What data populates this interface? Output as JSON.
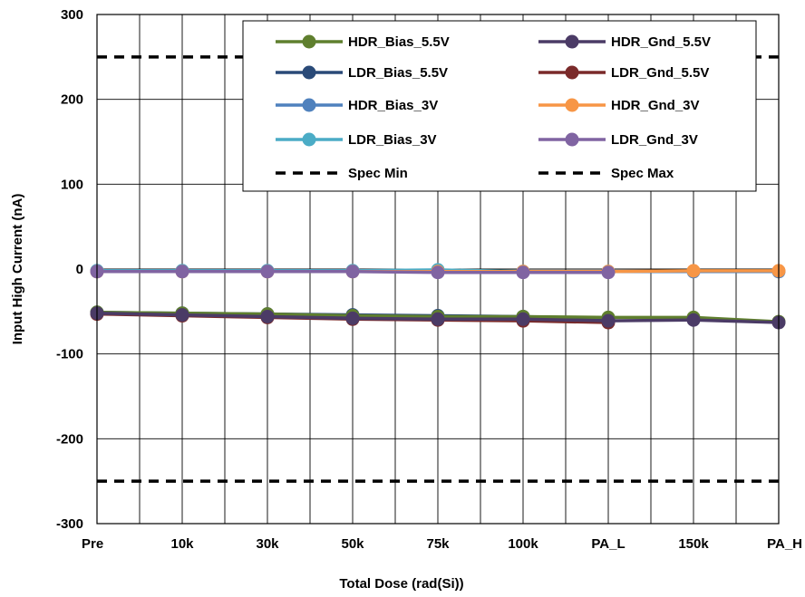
{
  "chart_data": {
    "type": "line",
    "xlabel": "Total Dose (rad(Si))",
    "ylabel": "Input High Current (nA)",
    "categories": [
      "Pre",
      "10k",
      "30k",
      "50k",
      "75k",
      "100k",
      "PA_L",
      "150k",
      "PA_H"
    ],
    "ylim": [
      -300,
      300
    ],
    "yticks": [
      300,
      200,
      100,
      0,
      -100,
      -200,
      -300
    ],
    "grid": true,
    "legend_position": "top-right",
    "series": [
      {
        "name": "HDR_Bias_5.5V",
        "color": "#5f7f2e",
        "style": "solid-marker",
        "values": [
          -51,
          -52,
          -53,
          -55,
          -56,
          -56,
          -57,
          -57,
          -62
        ]
      },
      {
        "name": "HDR_Gnd_5.5V",
        "color": "#4b3b66",
        "style": "solid-marker",
        "values": [
          -52,
          -54,
          -56,
          -58,
          -59,
          -59,
          -61,
          -60,
          -63
        ]
      },
      {
        "name": "LDR_Bias_5.5V",
        "color": "#2a4a78",
        "style": "solid-marker",
        "values": [
          -51,
          -52,
          -53,
          -54,
          -55,
          -56,
          -58,
          null,
          null
        ]
      },
      {
        "name": "LDR_Gnd_5.5V",
        "color": "#7a2a2a",
        "style": "solid-marker",
        "values": [
          -53,
          -55,
          -57,
          -59,
          -60,
          -61,
          -63,
          null,
          null
        ]
      },
      {
        "name": "HDR_Bias_3V",
        "color": "#4f81bd",
        "style": "solid-marker",
        "values": [
          -2,
          -2,
          -2,
          -2,
          -3,
          -3,
          -3,
          -3,
          -3
        ]
      },
      {
        "name": "HDR_Gnd_3V",
        "color": "#f79646",
        "style": "solid-marker",
        "values": [
          -3,
          -3,
          -3,
          -3,
          -3,
          -3,
          -3,
          -2,
          -2
        ]
      },
      {
        "name": "LDR_Bias_3V",
        "color": "#4bacc6",
        "style": "solid-marker",
        "values": [
          -2,
          -2,
          -2,
          -2,
          -1,
          -3,
          -3,
          null,
          null
        ]
      },
      {
        "name": "LDR_Gnd_3V",
        "color": "#8064a2",
        "style": "solid-marker",
        "values": [
          -3,
          -3,
          -3,
          -3,
          -4,
          -4,
          -4,
          null,
          null
        ]
      },
      {
        "name": "Spec Min",
        "color": "#000000",
        "style": "dashed",
        "values": [
          -250,
          -250,
          -250,
          -250,
          -250,
          -250,
          -250,
          -250,
          -250
        ]
      },
      {
        "name": "Spec Max",
        "color": "#000000",
        "style": "dashed",
        "values": [
          250,
          250,
          250,
          250,
          250,
          250,
          250,
          250,
          250
        ]
      }
    ]
  }
}
